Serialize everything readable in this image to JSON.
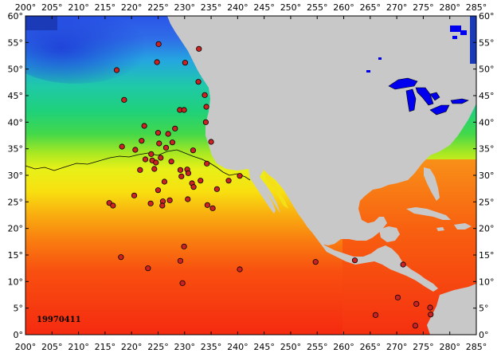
{
  "map": {
    "date_label": "19970411",
    "lon_ticks": [
      "200°",
      "205°",
      "210°",
      "215°",
      "220°",
      "225°",
      "230°",
      "235°",
      "240°",
      "245°",
      "250°",
      "255°",
      "260°",
      "265°",
      "270°",
      "275°",
      "280°",
      "285°"
    ],
    "lat_ticks": [
      "0°",
      "5°",
      "10°",
      "15°",
      "20°",
      "25°",
      "30°",
      "35°",
      "40°",
      "45°",
      "50°",
      "55°",
      "60°"
    ],
    "lon_range": [
      200,
      285
    ],
    "lat_range": [
      0,
      60
    ],
    "colors": {
      "land": "#c8c8c8",
      "lakes": "#0000ff",
      "marker_fill": "#cc2222",
      "marker_stroke": "#000000",
      "isotherm": "#000000"
    },
    "stations": [
      [
        225.1,
        54.7
      ],
      [
        224.8,
        51.3
      ],
      [
        230.1,
        51.2
      ],
      [
        232.7,
        53.8
      ],
      [
        217.2,
        49.8
      ],
      [
        232.6,
        47.6
      ],
      [
        233.8,
        45.1
      ],
      [
        218.6,
        44.2
      ],
      [
        229.1,
        42.3
      ],
      [
        229.9,
        42.3
      ],
      [
        234.1,
        42.9
      ],
      [
        222.4,
        39.3
      ],
      [
        228.2,
        38.8
      ],
      [
        234.0,
        40.0
      ],
      [
        225.0,
        38.0
      ],
      [
        226.9,
        37.8
      ],
      [
        221.9,
        36.5
      ],
      [
        225.2,
        36.0
      ],
      [
        227.7,
        36.2
      ],
      [
        218.2,
        35.4
      ],
      [
        220.7,
        34.8
      ],
      [
        231.6,
        34.7
      ],
      [
        226.5,
        35.2
      ],
      [
        235.0,
        36.3
      ],
      [
        223.7,
        34.0
      ],
      [
        225.5,
        33.3
      ],
      [
        222.6,
        33.0
      ],
      [
        223.9,
        32.8
      ],
      [
        224.6,
        32.4
      ],
      [
        227.5,
        32.6
      ],
      [
        234.2,
        32.2
      ],
      [
        229.2,
        31.0
      ],
      [
        230.5,
        31.1
      ],
      [
        221.6,
        31.0
      ],
      [
        224.3,
        31.2
      ],
      [
        229.4,
        29.8
      ],
      [
        230.7,
        30.4
      ],
      [
        238.3,
        29.0
      ],
      [
        240.4,
        29.9
      ],
      [
        226.2,
        28.8
      ],
      [
        233.0,
        29.0
      ],
      [
        231.4,
        28.5
      ],
      [
        231.7,
        27.8
      ],
      [
        225.0,
        27.2
      ],
      [
        236.1,
        27.4
      ],
      [
        220.5,
        26.2
      ],
      [
        225.9,
        25.1
      ],
      [
        230.6,
        25.5
      ],
      [
        215.8,
        24.8
      ],
      [
        216.5,
        24.3
      ],
      [
        223.6,
        24.7
      ],
      [
        227.2,
        25.3
      ],
      [
        234.3,
        24.4
      ],
      [
        235.3,
        23.8
      ],
      [
        225.8,
        24.3
      ],
      [
        229.9,
        16.6
      ],
      [
        218.0,
        14.6
      ],
      [
        229.2,
        13.9
      ],
      [
        223.1,
        12.5
      ],
      [
        240.4,
        12.3
      ],
      [
        229.6,
        9.7
      ],
      [
        254.7,
        13.7
      ],
      [
        262.1,
        14.0
      ],
      [
        271.2,
        13.2
      ],
      [
        270.2,
        7.0
      ],
      [
        273.7,
        5.8
      ],
      [
        276.3,
        5.1
      ],
      [
        276.4,
        3.8
      ],
      [
        266.0,
        3.7
      ],
      [
        273.5,
        1.7
      ]
    ]
  }
}
